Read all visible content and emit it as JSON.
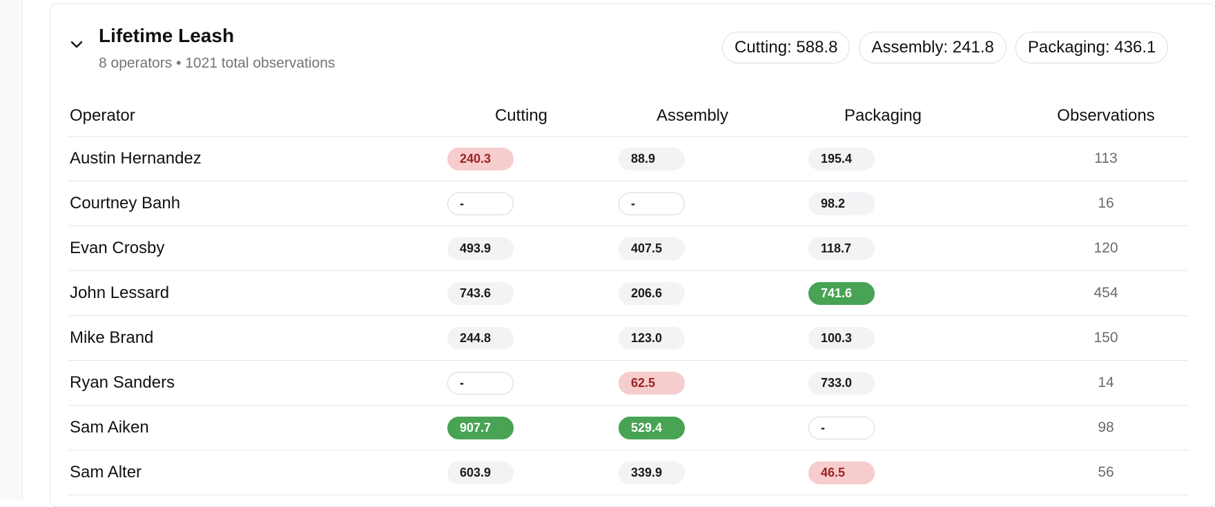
{
  "card": {
    "title": "Lifetime Leash",
    "subtitle": "8 operators • 1021 total observations",
    "chips": [
      {
        "label": "Cutting: 588.8"
      },
      {
        "label": "Assembly: 241.8"
      },
      {
        "label": "Packaging: 436.1"
      }
    ]
  },
  "table": {
    "headers": {
      "operator": "Operator",
      "cutting": "Cutting",
      "assembly": "Assembly",
      "packaging": "Packaging",
      "observations": "Observations"
    },
    "rows": [
      {
        "operator": "Austin Hernandez",
        "cutting": "240.3",
        "cutting_status": "red",
        "assembly": "88.9",
        "assembly_status": "neutral",
        "packaging": "195.4",
        "packaging_status": "neutral",
        "observations": "113"
      },
      {
        "operator": "Courtney Banh",
        "cutting": "-",
        "cutting_status": "empty",
        "assembly": "-",
        "assembly_status": "empty",
        "packaging": "98.2",
        "packaging_status": "neutral",
        "observations": "16"
      },
      {
        "operator": "Evan Crosby",
        "cutting": "493.9",
        "cutting_status": "neutral",
        "assembly": "407.5",
        "assembly_status": "neutral",
        "packaging": "118.7",
        "packaging_status": "neutral",
        "observations": "120"
      },
      {
        "operator": "John Lessard",
        "cutting": "743.6",
        "cutting_status": "neutral",
        "assembly": "206.6",
        "assembly_status": "neutral",
        "packaging": "741.6",
        "packaging_status": "green",
        "observations": "454"
      },
      {
        "operator": "Mike Brand",
        "cutting": "244.8",
        "cutting_status": "neutral",
        "assembly": "123.0",
        "assembly_status": "neutral",
        "packaging": "100.3",
        "packaging_status": "neutral",
        "observations": "150"
      },
      {
        "operator": "Ryan Sanders",
        "cutting": "-",
        "cutting_status": "empty",
        "assembly": "62.5",
        "assembly_status": "red",
        "packaging": "733.0",
        "packaging_status": "neutral",
        "observations": "14"
      },
      {
        "operator": "Sam Aiken",
        "cutting": "907.7",
        "cutting_status": "green",
        "assembly": "529.4",
        "assembly_status": "green",
        "packaging": "-",
        "packaging_status": "empty",
        "observations": "98"
      },
      {
        "operator": "Sam Alter",
        "cutting": "603.9",
        "cutting_status": "neutral",
        "assembly": "339.9",
        "assembly_status": "neutral",
        "packaging": "46.5",
        "packaging_status": "red",
        "observations": "56"
      }
    ]
  },
  "colors": {
    "red_pill_bg": "#f6cccc",
    "red_pill_text": "#9a2323",
    "green_pill_bg": "#48a354",
    "neutral_pill_bg": "#f1f3f5"
  },
  "icons": {
    "collapse": "chevron-down-icon"
  }
}
